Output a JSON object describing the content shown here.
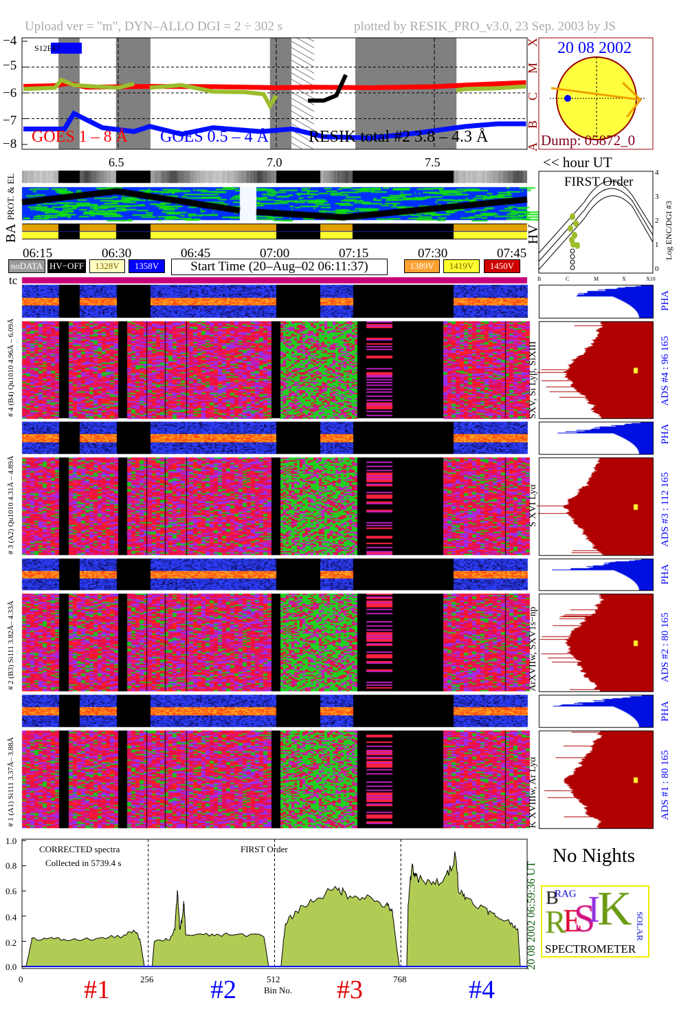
{
  "header": {
    "left": "Upload ver = \"m\", DYN–ALLO DGI =   2 ÷ 302 s",
    "right": "plotted by RESIK_PRO_v3.0, 23 Sep. 2003 by JS"
  },
  "goes": {
    "region": "S12E67",
    "y_ticks": [
      "−4",
      "−5",
      "−6",
      "−7",
      "−8"
    ],
    "x_ticks": [
      "6.5",
      "7.0",
      "7.5"
    ],
    "x_unit": "<< hour UT",
    "class_labels": [
      "A",
      "B",
      "C",
      "M",
      "X"
    ],
    "label_goes_long": "GOES 1 – 8 Å",
    "label_goes_short": "GOES 0.5 – 4 Å",
    "label_resik": "RESIK total #2  3.8 – 4.3 Å",
    "colors": {
      "goes_long": "#ff0000",
      "goes_short": "#0000ff",
      "resik": "#9cbd2c",
      "night": "#808080"
    }
  },
  "chart_data": [
    {
      "type": "line",
      "xlabel": "<< hour UT",
      "xlim": [
        6.196,
        7.793
      ],
      "ylim": [
        -8.1,
        -3.9
      ],
      "grid": "dashed lines at -5, -6, -7 and 7.0, 7.5",
      "night_bands": [
        [
          6.311,
          6.378
        ],
        [
          6.493,
          6.602
        ],
        [
          6.98,
          7.048
        ],
        [
          7.25,
          7.57
        ]
      ],
      "hatched_band": [
        7.048,
        7.12
      ],
      "series": [
        {
          "name": "GOES 1 – 8 Å",
          "points": [
            [
              6.2,
              -5.75
            ],
            [
              6.3,
              -5.72
            ],
            [
              6.34,
              -5.63
            ],
            [
              6.4,
              -5.78
            ],
            [
              6.6,
              -5.75
            ],
            [
              6.8,
              -5.76
            ],
            [
              7.0,
              -5.8
            ],
            [
              7.1,
              -5.78
            ],
            [
              7.3,
              -5.8
            ],
            [
              7.5,
              -5.76
            ],
            [
              7.6,
              -5.7
            ],
            [
              7.79,
              -5.6
            ]
          ]
        },
        {
          "name": "GOES 0.5 – 4 Å",
          "points": [
            [
              6.2,
              -7.4
            ],
            [
              6.33,
              -7.4
            ],
            [
              6.36,
              -6.8
            ],
            [
              6.45,
              -7.35
            ],
            [
              6.55,
              -7.5
            ],
            [
              6.6,
              -7.3
            ],
            [
              6.7,
              -7.6
            ],
            [
              6.8,
              -7.35
            ],
            [
              6.95,
              -7.5
            ],
            [
              7.05,
              -7.4
            ],
            [
              7.15,
              -7.7
            ],
            [
              7.3,
              -7.75
            ],
            [
              7.45,
              -7.55
            ],
            [
              7.6,
              -7.3
            ],
            [
              7.7,
              -7.2
            ],
            [
              7.79,
              -7.2
            ]
          ]
        },
        {
          "name": "RESIK total #2  3.8 – 4.3 Å",
          "segments": [
            [
              [
                6.2,
                -5.85
              ],
              [
                6.3,
                -5.8
              ],
              [
                6.32,
                -5.5
              ],
              [
                6.36,
                -5.7
              ],
              [
                6.42,
                -5.75
              ],
              [
                6.5,
                -5.8
              ],
              [
                6.55,
                -5.65
              ]
            ],
            [
              [
                6.6,
                -5.8
              ],
              [
                6.7,
                -5.7
              ],
              [
                6.8,
                -5.95
              ],
              [
                6.9,
                -5.97
              ],
              [
                6.96,
                -6.05
              ],
              [
                6.98,
                -6.5
              ],
              [
                7.0,
                -6.1
              ]
            ],
            [
              [
                7.1,
                -6.3
              ],
              [
                7.15,
                -6.3
              ],
              [
                7.19,
                -6.1
              ],
              [
                7.22,
                -5.3
              ]
            ],
            [
              [
                7.57,
                -5.9
              ],
              [
                7.6,
                -5.85
              ],
              [
                7.7,
                -5.82
              ],
              [
                7.79,
                -5.75
              ]
            ]
          ]
        }
      ]
    },
    {
      "type": "area",
      "title": "FIRST Order",
      "xlabel": "Bin No.",
      "xlim": [
        0,
        1024
      ],
      "ylim": [
        0,
        1.0
      ],
      "x_ticks": [
        "0",
        "256",
        "512",
        "768"
      ],
      "y_ticks": [
        "0.0",
        "0.2",
        "0.4",
        "0.6",
        "0.8",
        "1.0"
      ],
      "channels": [
        {
          "name": "#1",
          "points": [
            [
              8,
              0
            ],
            [
              14,
              0.1
            ],
            [
              20,
              0.22
            ],
            [
              60,
              0.22
            ],
            [
              100,
              0.21
            ],
            [
              150,
              0.22
            ],
            [
              200,
              0.24
            ],
            [
              230,
              0.28
            ],
            [
              240,
              0.2
            ],
            [
              248,
              0
            ]
          ]
        },
        {
          "name": "#2",
          "points": [
            [
              264,
              0
            ],
            [
              268,
              0.2
            ],
            [
              300,
              0.22
            ],
            [
              310,
              0.3
            ],
            [
              315,
              0.6
            ],
            [
              320,
              0.3
            ],
            [
              326,
              0.4
            ],
            [
              328,
              0.52
            ],
            [
              332,
              0.25
            ],
            [
              380,
              0.25
            ],
            [
              420,
              0.25
            ],
            [
              490,
              0.25
            ],
            [
              496,
              0.1
            ],
            [
              500,
              0
            ]
          ]
        },
        {
          "name": "#3",
          "points": [
            [
              525,
              0
            ],
            [
              530,
              0.2
            ],
            [
              535,
              0.35
            ],
            [
              560,
              0.45
            ],
            [
              600,
              0.55
            ],
            [
              640,
              0.62
            ],
            [
              660,
              0.57
            ],
            [
              700,
              0.55
            ],
            [
              740,
              0.48
            ],
            [
              750,
              0.45
            ],
            [
              758,
              0.2
            ],
            [
              765,
              0
            ]
          ]
        },
        {
          "name": "#4",
          "points": [
            [
              780,
              0
            ],
            [
              783,
              0.5
            ],
            [
              790,
              0.8
            ],
            [
              800,
              0.7
            ],
            [
              830,
              0.65
            ],
            [
              860,
              0.7
            ],
            [
              880,
              0.9
            ],
            [
              885,
              0.6
            ],
            [
              900,
              0.55
            ],
            [
              940,
              0.45
            ],
            [
              960,
              0.4
            ],
            [
              990,
              0.35
            ],
            [
              1005,
              0.3
            ],
            [
              1010,
              0
            ]
          ]
        }
      ]
    }
  ],
  "sun": {
    "date": "20 08 2002",
    "dump": "Dump: 05872_0"
  },
  "strips": {
    "el_label": "PROT. & EL",
    "ba_label": "BA",
    "hv_label": "HV"
  },
  "time_ticks": [
    "06:15",
    "06:30",
    "06:45",
    "07:00",
    "07:15",
    "07:30",
    "07:45"
  ],
  "legend": [
    {
      "label": "noDATA",
      "bg": "#9a9a9a",
      "fg": "#ffffff"
    },
    {
      "label": "HV−OFF",
      "bg": "#000000",
      "fg": "#ffffff"
    },
    {
      "label": "1328V",
      "bg": "#ffffc0",
      "fg": "#806000"
    },
    {
      "label": "1358V",
      "bg": "#0000ff",
      "fg": "#ffffff"
    },
    {
      "label": "1389V",
      "bg": "#ffa030",
      "fg": "#ffffff"
    },
    {
      "label": "1419V",
      "bg": "#ffff30",
      "fg": "#806000"
    },
    {
      "label": "1450V",
      "bg": "#d00000",
      "fg": "#ffffff"
    }
  ],
  "start_time": "Start Time (20–Aug–02 06:11:37)",
  "first_order": {
    "title": "FIRST Order",
    "y_ticks": [
      "0",
      "1",
      "2",
      "3",
      "4"
    ],
    "y_label": "Log ENC/DGI #3",
    "x_ticks": [
      "B",
      "C",
      "M",
      "X",
      "X10"
    ]
  },
  "tc_label": "tc",
  "channels": [
    {
      "left_label": "# 4 (B4) Qu1010 4.96Å – 6.09Å",
      "lines": "SXV, Si Lyβ, SiXIII",
      "pha": "PHA",
      "ads": "ADS #4 :  96 165"
    },
    {
      "left_label": "# 3 (A2) Qu1010 4.31Å – 4.89Å",
      "lines": "S XVI Lyα",
      "pha": "PHA",
      "ads": "ADS #3 :  112 165"
    },
    {
      "left_label": "# 2 (B3) Si111 3.82Å– 4.33Å",
      "lines": "ArXVIIw, SXV1s−np",
      "pha": "PHA",
      "ads": "ADS #2 :  80 165"
    },
    {
      "left_label": "# 1 (A1) Si111 3.37Å– 3.88Å",
      "lines": "K XVIIIw, Ar Lyα",
      "pha": "PHA",
      "ads": "ADS #1 :  80 165"
    }
  ],
  "spectrum": {
    "note1": "CORRECTED spectra",
    "note2": "Collected in  5739.4 s",
    "title": "FIRST Order",
    "xlabel": "Bin No.",
    "timestamp": "20 08 2002  06:59:36 UT",
    "channel_labels": [
      {
        "label": "#1",
        "color": "#e00000"
      },
      {
        "label": "#2",
        "color": "#0000ff"
      },
      {
        "label": "#3",
        "color": "#e00000"
      },
      {
        "label": "#4",
        "color": "#0000ff"
      }
    ]
  },
  "no_nights": "No Nights",
  "logo": {
    "word": "RESIK",
    "bottom": "SPECTROMETER",
    "side": "SOLAR",
    "top": "BRAG"
  }
}
